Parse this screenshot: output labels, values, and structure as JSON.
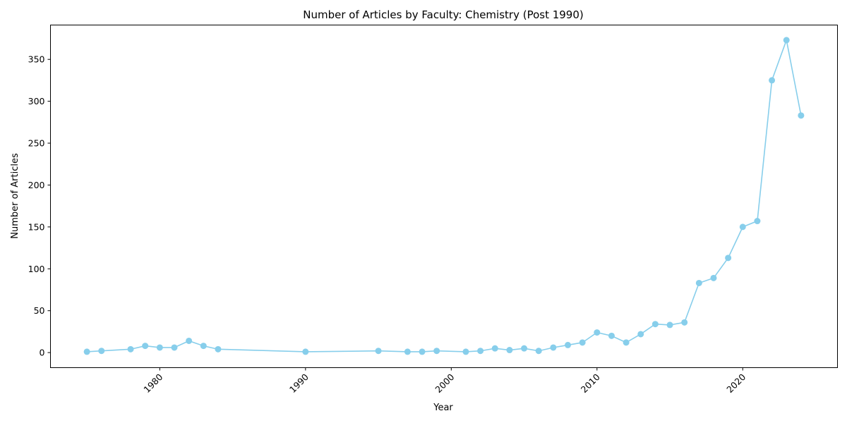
{
  "chart_data": {
    "type": "line",
    "title": "Number of Articles by Faculty: Chemistry (Post 1990)",
    "xlabel": "Year",
    "ylabel": "Number of Articles",
    "xlim": [
      1972.5,
      2026.5
    ],
    "ylim": [
      -18,
      391
    ],
    "xticks": [
      1980,
      1990,
      2000,
      2010,
      2020
    ],
    "yticks": [
      0,
      50,
      100,
      150,
      200,
      250,
      300,
      350
    ],
    "grid": false,
    "color": "#87CEEB",
    "marker": "circle",
    "x": [
      1975,
      1976,
      1978,
      1979,
      1980,
      1981,
      1982,
      1983,
      1984,
      1990,
      1995,
      1997,
      1998,
      1999,
      2001,
      2002,
      2003,
      2004,
      2005,
      2006,
      2007,
      2008,
      2009,
      2010,
      2011,
      2012,
      2013,
      2014,
      2015,
      2016,
      2017,
      2018,
      2019,
      2020,
      2021,
      2022,
      2023,
      2024
    ],
    "y": [
      1,
      2,
      4,
      8,
      6,
      6,
      14,
      8,
      4,
      1,
      2,
      1,
      1,
      2,
      1,
      2,
      5,
      3,
      5,
      2,
      6,
      9,
      12,
      24,
      20,
      12,
      22,
      34,
      33,
      36,
      83,
      89,
      113,
      150,
      157,
      325,
      373,
      283
    ]
  }
}
